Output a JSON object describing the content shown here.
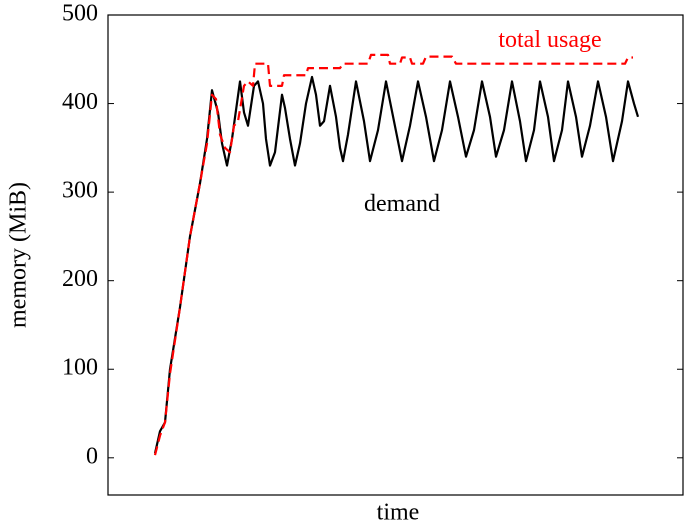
{
  "chart_data": {
    "type": "line",
    "x_label": "time",
    "y_label": "memory (MiB)",
    "xlim": [
      0,
      575
    ],
    "ylim": [
      -42,
      500
    ],
    "yticks": [
      0,
      100,
      200,
      300,
      400,
      500
    ],
    "annotations": [
      {
        "text": "total usage",
        "color": "#ff0000",
        "x": 442,
        "y": 470
      },
      {
        "text": "demand",
        "x": 294,
        "y": 285
      }
    ],
    "series": [
      {
        "name": "demand",
        "color": "#000000",
        "dash": false,
        "x": [
          47,
          52,
          57,
          62,
          72,
          82,
          92,
          99,
          104,
          110,
          114,
          119,
          124,
          132,
          136,
          140,
          146,
          150,
          155,
          158,
          162,
          167,
          174,
          177,
          182,
          187,
          192,
          198,
          204,
          208,
          212,
          216,
          222,
          228,
          232,
          235,
          240,
          248,
          256,
          262,
          270,
          278,
          286,
          294,
          302,
          310,
          318,
          326,
          334,
          342,
          350,
          358,
          366,
          374,
          382,
          388,
          396,
          404,
          412,
          418,
          426,
          432,
          440,
          446,
          454,
          460,
          468,
          474,
          482,
          490,
          498,
          505,
          514,
          520,
          526,
          530
        ],
        "values": [
          5,
          30,
          40,
          100,
          170,
          250,
          310,
          360,
          415,
          390,
          355,
          330,
          360,
          425,
          390,
          375,
          420,
          425,
          400,
          360,
          330,
          345,
          410,
          395,
          360,
          330,
          355,
          400,
          430,
          410,
          375,
          380,
          420,
          385,
          350,
          335,
          365,
          425,
          380,
          335,
          370,
          425,
          380,
          335,
          375,
          425,
          385,
          335,
          370,
          425,
          385,
          340,
          370,
          425,
          385,
          340,
          370,
          425,
          380,
          335,
          370,
          425,
          385,
          335,
          370,
          425,
          385,
          340,
          375,
          425,
          385,
          335,
          380,
          425,
          400,
          385
        ]
      },
      {
        "name": "total usage",
        "color": "#ff0000",
        "dash": true,
        "x": [
          47,
          52,
          57,
          62,
          72,
          82,
          92,
          99,
          104,
          108,
          112,
          117,
          122,
          126,
          130,
          136,
          140,
          145,
          147,
          160,
          162,
          174,
          176,
          198,
          200,
          232,
          235,
          260,
          263,
          280,
          282,
          292,
          294,
          302,
          304,
          315,
          318,
          344,
          348,
          517,
          520,
          525
        ],
        "values": [
          3,
          25,
          40,
          95,
          170,
          250,
          310,
          355,
          410,
          405,
          365,
          350,
          345,
          375,
          380,
          420,
          425,
          420,
          445,
          445,
          420,
          420,
          432,
          432,
          440,
          440,
          445,
          445,
          455,
          455,
          445,
          445,
          452,
          452,
          445,
          445,
          453,
          453,
          445,
          445,
          452,
          452
        ]
      }
    ]
  }
}
